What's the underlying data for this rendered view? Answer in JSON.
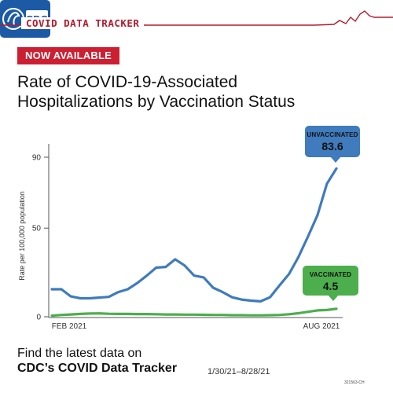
{
  "header": {
    "tracker_title": "COVID DATA TRACKER",
    "accent_color": "#b31b2e"
  },
  "badge": {
    "label": "NOW AVAILABLE",
    "color": "#cc1f32"
  },
  "title_lines": [
    "Rate of COVID-19-Associated",
    "Hospitalizations by Vaccination Status"
  ],
  "chart_data": {
    "type": "line",
    "ylabel": "Rate per 100,000 population",
    "ylim": [
      0,
      90
    ],
    "y_ticks": [
      0,
      50,
      90
    ],
    "x_tick_labels": [
      "FEB 2021",
      "AUG 2021"
    ],
    "x_range": [
      "1/30/21",
      "8/28/21"
    ],
    "grid": false,
    "series": [
      {
        "name": "UNVACCINATED",
        "color": "#3f7bbd",
        "values": [
          15.5,
          15.5,
          11.5,
          10.4,
          10.4,
          10.8,
          11.2,
          13.9,
          15.5,
          19.0,
          23.2,
          27.7,
          28.1,
          32.4,
          28.9,
          23.2,
          22.2,
          16.4,
          13.9,
          11.0,
          9.7,
          9.1,
          8.7,
          11.0,
          17.7,
          24.1,
          33.7,
          45.2,
          57.3,
          75.0,
          83.6
        ]
      },
      {
        "name": "VACCINATED",
        "color": "#4cae4c",
        "values": [
          0.6,
          1.0,
          1.3,
          1.6,
          1.8,
          1.9,
          1.7,
          1.6,
          1.6,
          1.5,
          1.5,
          1.4,
          1.3,
          1.3,
          1.2,
          1.2,
          1.1,
          1.0,
          1.0,
          0.9,
          0.9,
          0.8,
          0.8,
          0.9,
          1.0,
          1.4,
          2.0,
          2.8,
          3.6,
          3.8,
          4.5
        ]
      }
    ],
    "callouts": [
      {
        "label": "UNVACCINATED",
        "value": "83.6"
      },
      {
        "label": "VACCINATED",
        "value": "4.5"
      }
    ]
  },
  "footer": {
    "line1": "Find the latest data on",
    "line2": "CDC’s COVID Data Tracker",
    "date_range": "1/30/21–8/28/21",
    "logo_text": "CDC",
    "doc_id": "321563-CH"
  }
}
